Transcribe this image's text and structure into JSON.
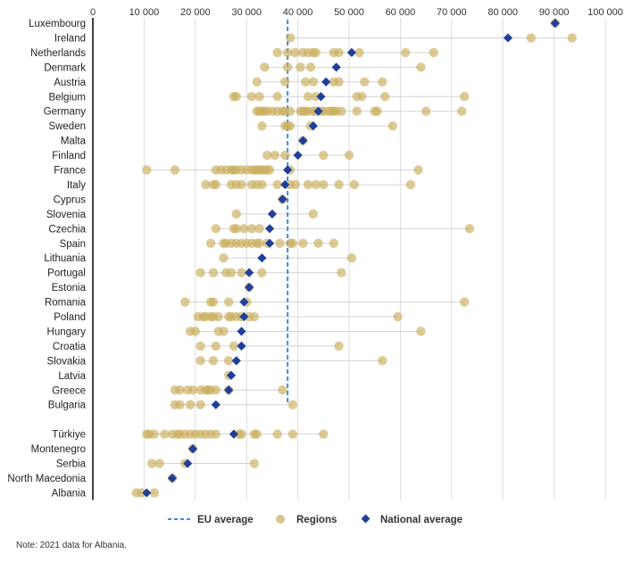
{
  "chart_data": {
    "type": "scatter",
    "title": "",
    "xlabel": "",
    "ylabel": "",
    "xlim": [
      0,
      100000
    ],
    "xticks": [
      0,
      10000,
      20000,
      30000,
      40000,
      50000,
      60000,
      70000,
      80000,
      90000,
      100000
    ],
    "xtick_labels": [
      "0",
      "10 000",
      "20 000",
      "30 000",
      "40 000",
      "50 000",
      "60 000",
      "70 000",
      "80 000",
      "90 000",
      "100 000"
    ],
    "eu_average": 38000,
    "colors": {
      "regions": "#c9ad5c",
      "national": "#1f3f99",
      "eu_line": "#3a8ee0",
      "grid": "#dddddd",
      "axis": "#000000"
    },
    "legend": {
      "placement": "bottom",
      "eu_label": "EU average",
      "regions_label": "Regions",
      "national_label": "National average"
    },
    "note": "Note: 2021 data for Albania.",
    "countries": [
      {
        "name": "Luxembourg",
        "national": 90200,
        "regions": [
          90200
        ]
      },
      {
        "name": "Ireland",
        "national": 81000,
        "regions": [
          38500,
          85500,
          93500
        ]
      },
      {
        "name": "Netherlands",
        "national": 50500,
        "regions": [
          36000,
          38000,
          39500,
          41000,
          42000,
          43000,
          43500,
          47000,
          48000,
          52000,
          61000,
          66500
        ]
      },
      {
        "name": "Denmark",
        "national": 47500,
        "regions": [
          33500,
          38000,
          40500,
          42500,
          64000
        ]
      },
      {
        "name": "Austria",
        "national": 45500,
        "regions": [
          32000,
          37500,
          41500,
          43000,
          47000,
          48000,
          53000,
          56500
        ]
      },
      {
        "name": "Belgium",
        "national": 44500,
        "regions": [
          27500,
          28000,
          31000,
          32500,
          36000,
          42000,
          43500,
          51500,
          52500,
          57000,
          72500
        ]
      },
      {
        "name": "Germany",
        "national": 44000,
        "regions": [
          32000,
          32500,
          33000,
          33500,
          34000,
          35000,
          36000,
          37000,
          37500,
          38500,
          40500,
          41000,
          41500,
          42000,
          43000,
          43500,
          44500,
          45000,
          46000,
          46500,
          47000,
          47500,
          48500,
          51500,
          55000,
          55500,
          65000,
          72000
        ]
      },
      {
        "name": "Sweden",
        "national": 43000,
        "regions": [
          33000,
          37500,
          38000,
          38500,
          42500,
          58500
        ]
      },
      {
        "name": "Malta",
        "national": 41000,
        "regions": [
          41000
        ]
      },
      {
        "name": "Finland",
        "national": 40000,
        "regions": [
          34000,
          35500,
          37500,
          45000,
          50000
        ]
      },
      {
        "name": "France",
        "national": 38000,
        "regions": [
          10500,
          16000,
          24000,
          25000,
          26000,
          27000,
          27500,
          28000,
          29000,
          30000,
          31000,
          31500,
          32000,
          32500,
          33000,
          33500,
          34000,
          34500,
          38500,
          63500
        ]
      },
      {
        "name": "Italy",
        "national": 37500,
        "regions": [
          22000,
          23500,
          24000,
          27000,
          28000,
          29000,
          31000,
          32000,
          33000,
          36000,
          38500,
          39500,
          42000,
          43500,
          45000,
          48000,
          51000,
          62000
        ]
      },
      {
        "name": "Cyprus",
        "national": 37000,
        "regions": [
          37000
        ]
      },
      {
        "name": "Slovenia",
        "national": 35000,
        "regions": [
          28000,
          43000
        ]
      },
      {
        "name": "Czechia",
        "national": 34500,
        "regions": [
          24000,
          27500,
          28000,
          29500,
          31000,
          32500,
          73500
        ]
      },
      {
        "name": "Spain",
        "national": 34500,
        "regions": [
          23000,
          25500,
          26000,
          27000,
          28000,
          29000,
          30000,
          31000,
          32000,
          32500,
          34000,
          36500,
          38500,
          39000,
          41000,
          44000,
          47000
        ]
      },
      {
        "name": "Lithuania",
        "national": 33000,
        "regions": [
          25500,
          50500
        ]
      },
      {
        "name": "Portugal",
        "national": 30500,
        "regions": [
          21000,
          23500,
          26000,
          27000,
          29000,
          33000,
          48500
        ]
      },
      {
        "name": "Estonia",
        "national": 30500,
        "regions": [
          30500
        ]
      },
      {
        "name": "Romania",
        "national": 29500,
        "regions": [
          18000,
          23000,
          23500,
          26500,
          30000,
          72500
        ]
      },
      {
        "name": "Poland",
        "national": 29500,
        "regions": [
          20500,
          21500,
          22000,
          23000,
          23500,
          24500,
          26500,
          27000,
          28000,
          29000,
          30500,
          31500,
          59500
        ]
      },
      {
        "name": "Hungary",
        "national": 29000,
        "regions": [
          19000,
          20000,
          24500,
          25500,
          64000
        ]
      },
      {
        "name": "Croatia",
        "national": 29000,
        "regions": [
          21000,
          24000,
          27500,
          48000
        ]
      },
      {
        "name": "Slovakia",
        "national": 28000,
        "regions": [
          21000,
          23500,
          26500,
          56500
        ]
      },
      {
        "name": "Latvia",
        "national": 27000,
        "regions": [
          26500
        ]
      },
      {
        "name": "Greece",
        "national": 26500,
        "regions": [
          16000,
          17000,
          18500,
          19500,
          21000,
          22000,
          22500,
          23000,
          24000,
          26500,
          37000
        ]
      },
      {
        "name": "Bulgaria",
        "national": 24000,
        "regions": [
          16000,
          17000,
          19000,
          21000,
          39000
        ]
      },
      {
        "name": "Türkiye",
        "national": 27500,
        "regions": [
          10500,
          11000,
          12000,
          14000,
          15500,
          16500,
          17000,
          18000,
          19000,
          20000,
          21000,
          22000,
          23000,
          24000,
          28500,
          29000,
          31500,
          32000,
          36000,
          39000,
          45000
        ]
      },
      {
        "name": "Montenegro",
        "national": 19500,
        "regions": [
          19500
        ]
      },
      {
        "name": "Serbia",
        "national": 18500,
        "regions": [
          11500,
          13000,
          18000,
          31500
        ]
      },
      {
        "name": "North Macedonia",
        "national": 15500,
        "regions": [
          15500
        ]
      },
      {
        "name": "Albania",
        "national": 10500,
        "regions": [
          8500,
          9500,
          12000
        ]
      }
    ]
  }
}
